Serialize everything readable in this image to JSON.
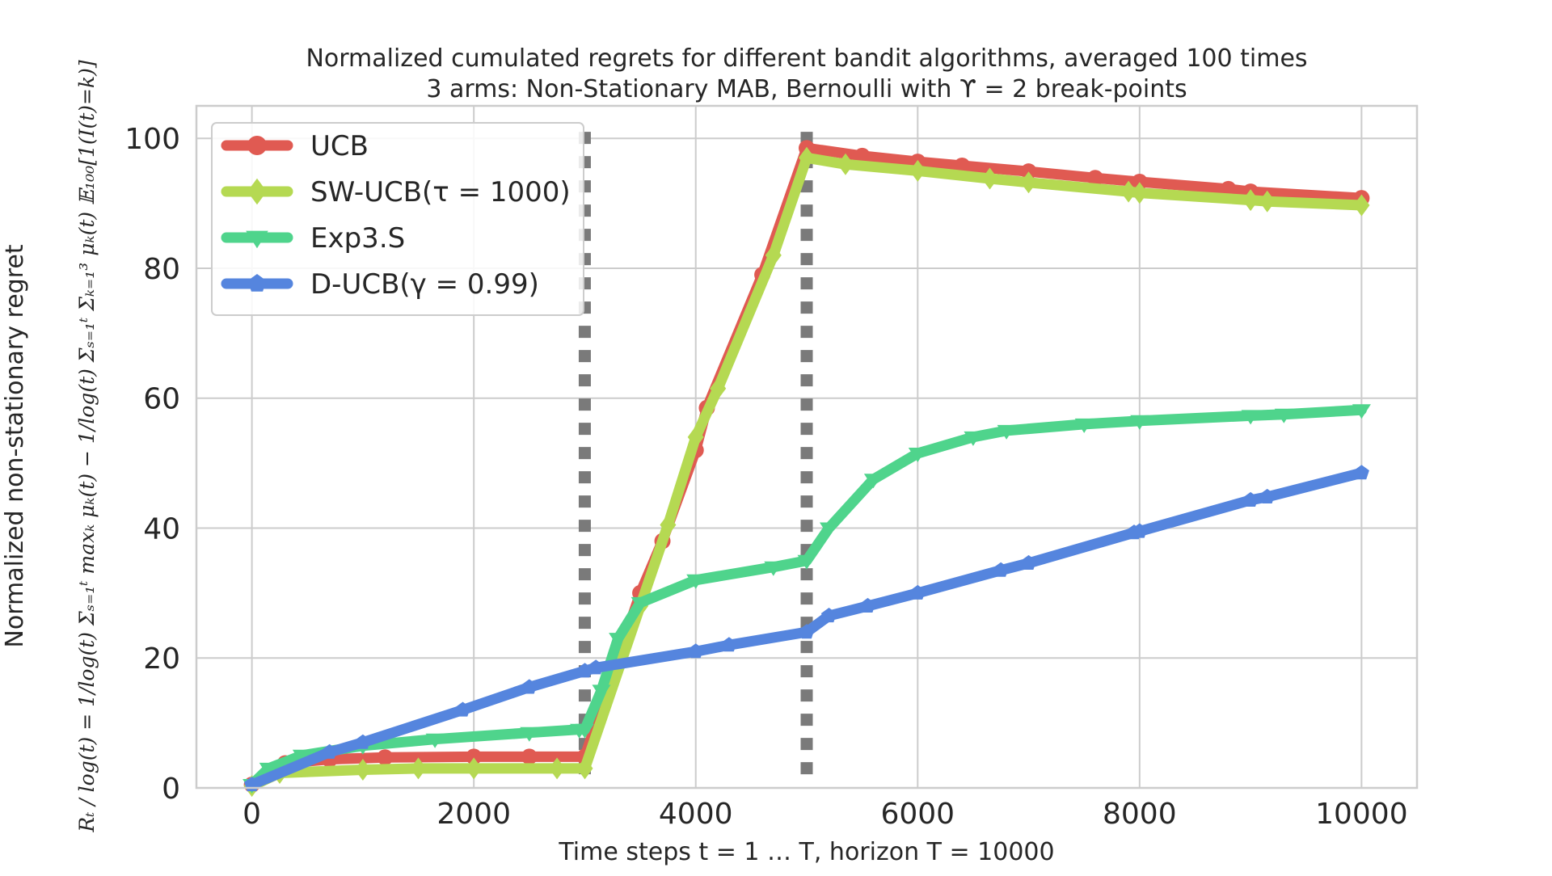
{
  "chart_data": {
    "type": "line",
    "title": "Normalized cumulated regrets for different bandit algorithms, averaged 100 times",
    "subtitle": "3 arms: Non-Stationary MAB, Bernoulli with ϒ = 2 break-points",
    "xlabel": "Time steps t = 1 … T, horizon T = 10000",
    "ylabel": "Normalized non-stationary regret",
    "ylabel_formula": "Rₜ / log(t) = 1/log(t) Σₛ₌₁ᵗ maxₖ μₖ(t) − 1/log(t) Σₛ₌₁ᵗ Σₖ₌₁³ μₖ(t) 𝔼₁₀₀[1(I(t)=k)]",
    "xlim": [
      -500,
      10500
    ],
    "ylim": [
      0,
      105
    ],
    "xticks": [
      0,
      2000,
      4000,
      6000,
      8000,
      10000
    ],
    "yticks": [
      0,
      20,
      40,
      60,
      80,
      100
    ],
    "grid": true,
    "legend_position": "top-left",
    "breakpoints": [
      3000,
      5000
    ],
    "series": [
      {
        "name": "UCB",
        "color": "#e05a52",
        "marker": "circle",
        "x": [
          0,
          300,
          700,
          1200,
          2000,
          2500,
          3000,
          3500,
          3700,
          4000,
          4100,
          4600,
          5000,
          5500,
          6000,
          6400,
          7000,
          7600,
          8000,
          8800,
          9000,
          10000
        ],
        "y": [
          0.5,
          3.8,
          4.4,
          4.7,
          4.8,
          4.8,
          4.8,
          30.0,
          38.0,
          52.0,
          58.5,
          79.0,
          98.5,
          97.3,
          96.4,
          95.8,
          94.9,
          93.9,
          93.3,
          92.2,
          91.8,
          90.8
        ]
      },
      {
        "name": "SW-UCB(τ = 1000)",
        "color": "#b5d952",
        "marker": "diamond",
        "x": [
          0,
          250,
          1000,
          1500,
          2000,
          2750,
          3000,
          3500,
          3750,
          4000,
          4200,
          4700,
          5000,
          5350,
          6000,
          6650,
          7000,
          7900,
          8000,
          9000,
          9150,
          10000
        ],
        "y": [
          0.3,
          2.3,
          2.8,
          3.0,
          3.0,
          3.0,
          3.0,
          28.0,
          40.5,
          54.0,
          61.5,
          82.0,
          97.0,
          96.0,
          95.0,
          93.8,
          93.2,
          91.8,
          91.6,
          90.5,
          90.3,
          89.7
        ]
      },
      {
        "name": "Exp3.S",
        "color": "#4fd48c",
        "marker": "triangle-down",
        "x": [
          0,
          150,
          450,
          1000,
          1650,
          2500,
          2950,
          3000,
          3150,
          3300,
          3500,
          4000,
          4700,
          5000,
          5200,
          5600,
          6000,
          6500,
          6800,
          7500,
          8000,
          9000,
          9300,
          10000
        ],
        "y": [
          0.5,
          3.0,
          5.0,
          6.5,
          7.5,
          8.5,
          9.0,
          9.0,
          15.0,
          23.0,
          28.5,
          32.0,
          34.0,
          35.0,
          40.0,
          47.5,
          51.5,
          54.0,
          55.0,
          56.0,
          56.5,
          57.3,
          57.5,
          58.2
        ]
      },
      {
        "name": "D-UCB(γ = 0.99)",
        "color": "#5585de",
        "marker": "pentagon",
        "x": [
          0,
          700,
          1000,
          1900,
          2500,
          3000,
          3100,
          4000,
          4300,
          5000,
          5200,
          5550,
          6000,
          6750,
          7000,
          7950,
          8000,
          9000,
          9150,
          10000
        ],
        "y": [
          0.5,
          5.5,
          7.0,
          12.0,
          15.5,
          18.0,
          18.5,
          21.0,
          22.0,
          24.0,
          26.5,
          28.0,
          30.0,
          33.5,
          34.6,
          39.3,
          39.5,
          44.3,
          44.8,
          48.5
        ]
      }
    ]
  },
  "colors": {
    "grid": "#cccccc",
    "frame": "#cccccc",
    "breakpoint_line": "#7a7a7a",
    "legend_border": "#cccccc",
    "text": "#262626"
  }
}
